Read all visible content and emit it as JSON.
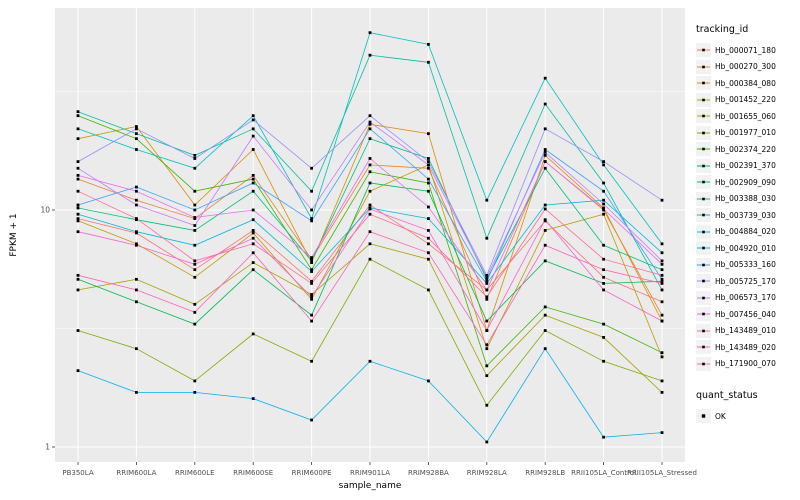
{
  "chart_data": {
    "type": "line",
    "title": "",
    "xlabel": "sample_name",
    "ylabel": "FPKM + 1",
    "yscale": "log10",
    "yticks": [
      1,
      10
    ],
    "y_minor_breaks": [
      3.162,
      31.62
    ],
    "ylim": [
      0.87,
      71
    ],
    "panel_bg": "#EBEBEB",
    "grid_color": "#FFFFFF",
    "tick_color": "#333333",
    "tick_label_color": "#4D4D4D",
    "point_color": "#000000",
    "legend_position": "right",
    "categories": [
      "PB350LA",
      "RRIM600LA",
      "RRIM600LE",
      "RRIM600SE",
      "RRIM600PE",
      "RRIM901LA",
      "RRIM928BA",
      "RRIM928LA",
      "RRIM928LB",
      "RRII105LA_Control",
      "RRII105LA_Stressed"
    ],
    "series": [
      {
        "name": "Hb_000071_180",
        "color": "#F8766D",
        "values": [
          9.2,
          8.0,
          5.6,
          8.2,
          5.0,
          10.5,
          7.2,
          4.6,
          9.0,
          5.2,
          4.1
        ]
      },
      {
        "name": "Hb_000270_300",
        "color": "#EA8331",
        "values": [
          13.5,
          11.0,
          9.2,
          14.0,
          6.2,
          15.5,
          15.0,
          4.2,
          16.0,
          10.0,
          3.6
        ]
      },
      {
        "name": "Hb_000384_080",
        "color": "#D89000",
        "values": [
          20.0,
          22.5,
          10.5,
          18.0,
          6.0,
          23.0,
          21.0,
          3.1,
          17.0,
          10.2,
          3.4
        ]
      },
      {
        "name": "Hb_001452_220",
        "color": "#C09B00",
        "values": [
          9.0,
          7.2,
          5.2,
          8.0,
          4.2,
          12.0,
          15.5,
          2.6,
          8.2,
          9.6,
          2.4
        ]
      },
      {
        "name": "Hb_001655_060",
        "color": "#A3A500",
        "values": [
          4.6,
          5.1,
          4.0,
          6.0,
          4.4,
          7.2,
          6.2,
          2.0,
          3.6,
          2.9,
          1.7
        ]
      },
      {
        "name": "Hb_001977_010",
        "color": "#7CAE00",
        "values": [
          3.1,
          2.6,
          1.9,
          3.0,
          2.3,
          6.2,
          4.6,
          1.5,
          3.1,
          2.3,
          1.9
        ]
      },
      {
        "name": "Hb_002374_220",
        "color": "#39B600",
        "values": [
          25.0,
          20.0,
          12.0,
          13.5,
          5.6,
          14.5,
          13.0,
          2.2,
          3.9,
          3.3,
          2.5
        ]
      },
      {
        "name": "Hb_002391_370",
        "color": "#00BB4E",
        "values": [
          5.1,
          4.1,
          3.3,
          5.6,
          3.6,
          13.0,
          12.0,
          3.4,
          6.1,
          4.9,
          5.0
        ]
      },
      {
        "name": "Hb_002909_090",
        "color": "#00BF7D",
        "values": [
          10.2,
          9.1,
          8.2,
          12.0,
          6.1,
          20.0,
          16.5,
          5.1,
          15.0,
          7.1,
          5.6
        ]
      },
      {
        "name": "Hb_003388_030",
        "color": "#00C1A3",
        "values": [
          26.0,
          21.0,
          17.0,
          22.0,
          12.0,
          45.0,
          42.0,
          7.6,
          28.0,
          13.0,
          4.6
        ]
      },
      {
        "name": "Hb_003739_030",
        "color": "#00BFC4",
        "values": [
          22.0,
          18.0,
          15.0,
          25.0,
          9.2,
          56.0,
          50.0,
          11.0,
          36.0,
          15.5,
          7.2
        ]
      },
      {
        "name": "Hb_004884_020",
        "color": "#00BAE0",
        "values": [
          9.6,
          8.1,
          7.1,
          9.1,
          5.5,
          10.2,
          9.2,
          4.9,
          10.5,
          11.0,
          6.6
        ]
      },
      {
        "name": "Hb_004920_010",
        "color": "#00B0F6",
        "values": [
          2.1,
          1.7,
          1.7,
          1.6,
          1.3,
          2.3,
          1.9,
          1.05,
          2.6,
          1.1,
          1.15
        ]
      },
      {
        "name": "Hb_005333_160",
        "color": "#35A2FF",
        "values": [
          10.5,
          12.5,
          10.0,
          13.0,
          9.0,
          22.0,
          13.5,
          5.0,
          18.0,
          12.0,
          5.1
        ]
      },
      {
        "name": "Hb_005725_170",
        "color": "#9590FF",
        "values": [
          16.0,
          22.0,
          16.5,
          24.0,
          15.0,
          25.0,
          16.0,
          5.3,
          22.0,
          16.0,
          11.0
        ]
      },
      {
        "name": "Hb_006573_170",
        "color": "#C77CFF",
        "values": [
          15.0,
          10.5,
          8.6,
          20.5,
          10.0,
          23.5,
          15.5,
          5.2,
          17.5,
          10.6,
          6.1
        ]
      },
      {
        "name": "Hb_007456_040",
        "color": "#E76BF3",
        "values": [
          14.0,
          12.0,
          9.3,
          10.0,
          6.3,
          16.5,
          10.3,
          4.6,
          16.0,
          10.1,
          5.9
        ]
      },
      {
        "name": "Hb_143489_010",
        "color": "#FA62DB",
        "values": [
          8.1,
          7.1,
          5.9,
          7.6,
          4.3,
          10.1,
          8.2,
          3.1,
          9.1,
          4.6,
          3.4
        ]
      },
      {
        "name": "Hb_143489_020",
        "color": "#FF62BC",
        "values": [
          5.3,
          4.6,
          3.7,
          6.6,
          3.4,
          8.1,
          6.6,
          2.7,
          7.1,
          5.6,
          4.9
        ]
      },
      {
        "name": "Hb_171900_070",
        "color": "#FF6A98",
        "values": [
          12.0,
          9.2,
          6.1,
          7.2,
          4.9,
          9.6,
          7.6,
          4.3,
          10.1,
          6.2,
          5.3
        ]
      }
    ]
  },
  "legend": {
    "tracking_title": "tracking_id",
    "quant_title": "quant_status",
    "quant_items": [
      {
        "label": "OK",
        "color": "#000000"
      }
    ]
  }
}
